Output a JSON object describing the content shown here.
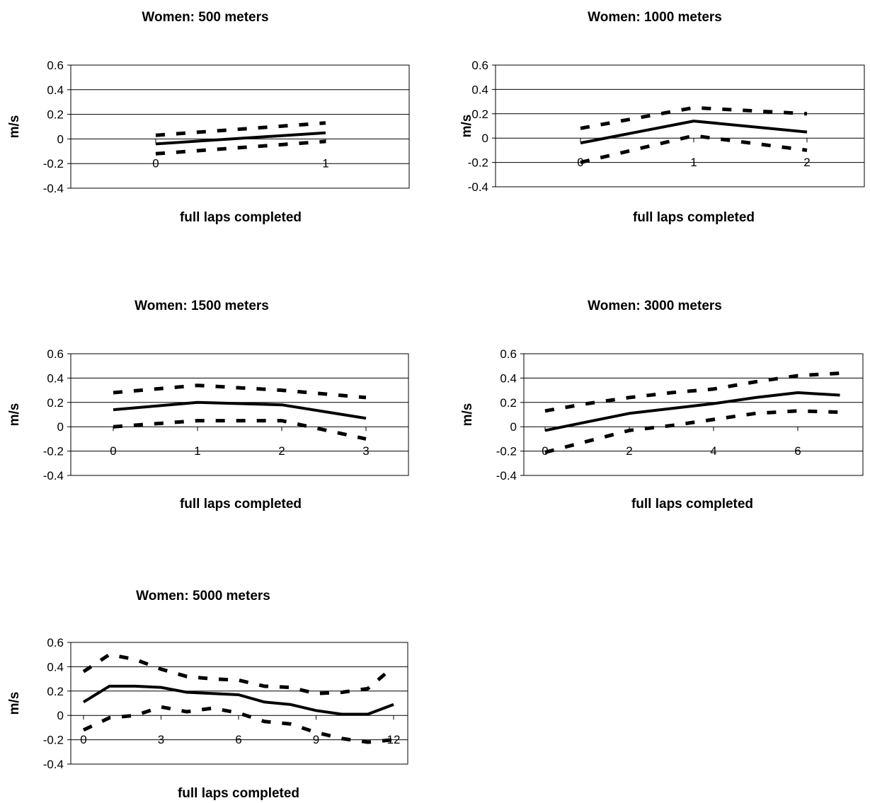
{
  "chart_data": [
    {
      "type": "line",
      "title": "Women: 500 meters",
      "xlabel": "full laps completed",
      "ylabel": "m/s",
      "ylim": [
        -0.4,
        0.6
      ],
      "yticks": [
        "0.6",
        "0.4",
        "0.2",
        "0",
        "-0.2",
        "-0.4"
      ],
      "xticks": [
        {
          "value": 0,
          "label": "0"
        },
        {
          "value": 1,
          "label": "1"
        }
      ],
      "grid": true,
      "x": [
        0,
        1
      ],
      "series": [
        {
          "style": "solid",
          "values": [
            -0.04,
            0.05
          ]
        },
        {
          "style": "dashed",
          "values": [
            0.03,
            0.13
          ]
        },
        {
          "style": "dashed",
          "values": [
            -0.12,
            -0.02
          ]
        }
      ]
    },
    {
      "type": "line",
      "title": "Women: 1000 meters",
      "xlabel": "full laps completed",
      "ylabel": "m/s",
      "ylim": [
        -0.4,
        0.6
      ],
      "yticks": [
        "0.6",
        "0.4",
        "0.2",
        "0",
        "-0.2",
        "-0.4"
      ],
      "xticks": [
        {
          "value": 0,
          "label": "0"
        },
        {
          "value": 1,
          "label": "1"
        },
        {
          "value": 2,
          "label": "2"
        }
      ],
      "grid": true,
      "x": [
        0,
        1,
        2
      ],
      "series": [
        {
          "style": "solid",
          "values": [
            -0.04,
            0.14,
            0.05
          ]
        },
        {
          "style": "dashed",
          "values": [
            0.08,
            0.25,
            0.2
          ]
        },
        {
          "style": "dashed",
          "values": [
            -0.2,
            0.02,
            -0.1
          ]
        }
      ]
    },
    {
      "type": "line",
      "title": "Women: 1500 meters",
      "xlabel": "full laps completed",
      "ylabel": "m/s",
      "ylim": [
        -0.4,
        0.6
      ],
      "yticks": [
        "0.6",
        "0.4",
        "0.2",
        "0",
        "-0.2",
        "-0.4"
      ],
      "xticks": [
        {
          "value": 0,
          "label": "0"
        },
        {
          "value": 1,
          "label": "1"
        },
        {
          "value": 2,
          "label": "2"
        },
        {
          "value": 3,
          "label": "3"
        }
      ],
      "grid": true,
      "x": [
        0,
        1,
        2,
        3
      ],
      "series": [
        {
          "style": "solid",
          "values": [
            0.14,
            0.2,
            0.18,
            0.07
          ]
        },
        {
          "style": "dashed",
          "values": [
            0.28,
            0.34,
            0.3,
            0.24
          ]
        },
        {
          "style": "dashed",
          "values": [
            0.0,
            0.05,
            0.05,
            -0.1
          ]
        }
      ]
    },
    {
      "type": "line",
      "title": "Women: 3000 meters",
      "xlabel": "full laps completed",
      "ylabel": "m/s",
      "ylim": [
        -0.4,
        0.6
      ],
      "yticks": [
        "0.6",
        "0.4",
        "0.2",
        "0",
        "-0.2",
        "-0.4"
      ],
      "xticks": [
        {
          "value": 0,
          "label": "0"
        },
        {
          "value": 2,
          "label": "2"
        },
        {
          "value": 4,
          "label": "4"
        },
        {
          "value": 6,
          "label": "6"
        }
      ],
      "grid": true,
      "x": [
        0,
        1,
        2,
        3,
        4,
        5,
        6,
        7
      ],
      "series": [
        {
          "style": "solid",
          "values": [
            -0.03,
            0.04,
            0.11,
            0.15,
            0.19,
            0.24,
            0.28,
            0.26
          ]
        },
        {
          "style": "dashed",
          "values": [
            0.13,
            0.19,
            0.24,
            0.28,
            0.31,
            0.37,
            0.42,
            0.44
          ]
        },
        {
          "style": "dashed",
          "values": [
            -0.21,
            -0.12,
            -0.03,
            0.01,
            0.06,
            0.11,
            0.13,
            0.12
          ]
        }
      ]
    },
    {
      "type": "line",
      "title": "Women: 5000 meters",
      "xlabel": "full laps completed",
      "ylabel": "m/s",
      "ylim": [
        -0.4,
        0.6
      ],
      "yticks": [
        "0.6",
        "0.4",
        "0.2",
        "0",
        "-0.2",
        "-0.4"
      ],
      "xticks": [
        {
          "value": 0,
          "label": "0"
        },
        {
          "value": 3,
          "label": "3"
        },
        {
          "value": 6,
          "label": "6"
        },
        {
          "value": 9,
          "label": "9"
        },
        {
          "value": 12,
          "label": "12"
        }
      ],
      "grid": true,
      "x": [
        0,
        1,
        2,
        3,
        4,
        5,
        6,
        7,
        8,
        9,
        10,
        11,
        12
      ],
      "series": [
        {
          "style": "solid",
          "values": [
            0.11,
            0.24,
            0.24,
            0.23,
            0.19,
            0.18,
            0.17,
            0.11,
            0.09,
            0.04,
            0.01,
            0.01,
            0.09
          ]
        },
        {
          "style": "dashed",
          "values": [
            0.36,
            0.5,
            0.46,
            0.38,
            0.32,
            0.3,
            0.29,
            0.24,
            0.23,
            0.18,
            0.19,
            0.22,
            0.4
          ]
        },
        {
          "style": "dashed",
          "values": [
            -0.12,
            -0.02,
            0.0,
            0.07,
            0.03,
            0.06,
            0.02,
            -0.05,
            -0.07,
            -0.14,
            -0.19,
            -0.22,
            -0.2
          ]
        }
      ]
    }
  ]
}
